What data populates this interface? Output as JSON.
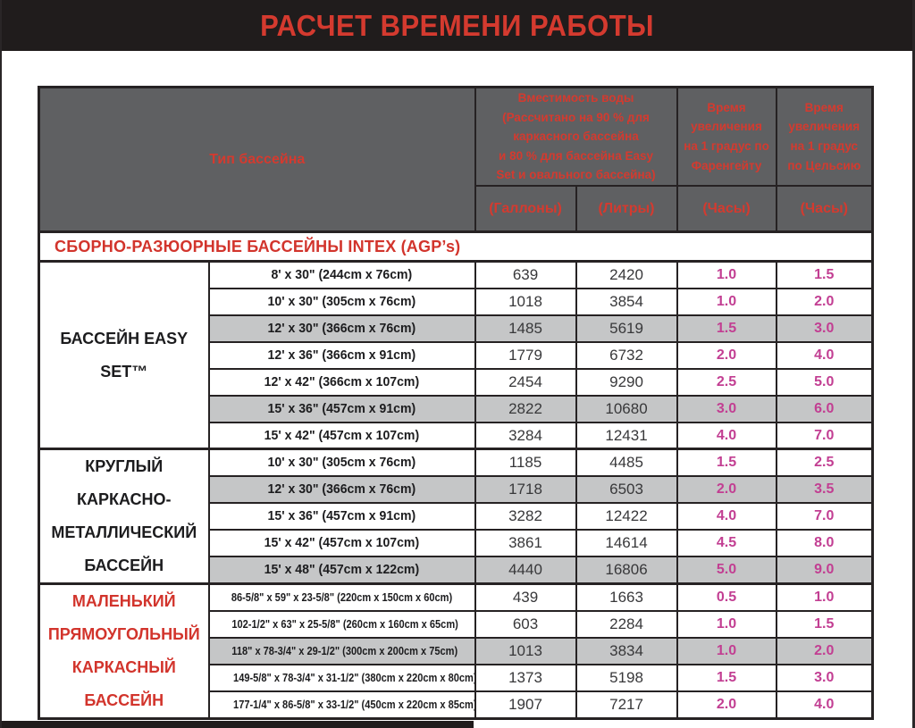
{
  "page": {
    "title": "РАСЧЕТ ВРЕМЕНИ РАБОТЫ"
  },
  "colors": {
    "accent_red": "#d43a2f",
    "hours_magenta": "#c23e92",
    "header_gray": "#5f6062",
    "row_shade": "#c5c6c7",
    "bar_black": "#201c1c"
  },
  "table": {
    "header": {
      "type_label": "Тип бассейна",
      "capacity_label": "Вместимость воды\n(Рассчитано на 90 % для\nкаркасного бассейна\nи 80 % для бассейна Easy\nSet и овального бассейна)",
      "fahrenheit_label": "Время\nувеличения\nна 1 градус по\nФаренгейту",
      "celsius_label": "Время\nувеличения\nна 1 градус\nпо Цельсию",
      "gallons_label": "(Галлоны)",
      "liters_label": "(Литры)",
      "hours_label_f": "(Часы)",
      "hours_label_c": "(Часы)"
    },
    "section_header": "СБОРНО-РАЗЮОРНЫЕ БАССЕЙНЫ INTEX (AGP’s)",
    "groups": [
      {
        "name": "БАССЕЙН EASY SET™",
        "red": false,
        "condensed": false,
        "rows": [
          {
            "size": "8' x 30\" (244cm x 76cm)",
            "gallons": "639",
            "liters": "2420",
            "hours_f": "1.0",
            "hours_c": "1.5",
            "shaded": false
          },
          {
            "size": "10' x 30\" (305cm x 76cm)",
            "gallons": "1018",
            "liters": "3854",
            "hours_f": "1.0",
            "hours_c": "2.0",
            "shaded": false
          },
          {
            "size": "12' x 30\" (366cm x 76cm)",
            "gallons": "1485",
            "liters": "5619",
            "hours_f": "1.5",
            "hours_c": "3.0",
            "shaded": true
          },
          {
            "size": "12' x 36\" (366cm x 91cm)",
            "gallons": "1779",
            "liters": "6732",
            "hours_f": "2.0",
            "hours_c": "4.0",
            "shaded": false
          },
          {
            "size": "12' x 42\" (366cm x 107cm)",
            "gallons": "2454",
            "liters": "9290",
            "hours_f": "2.5",
            "hours_c": "5.0",
            "shaded": false
          },
          {
            "size": "15' x 36\" (457cm x 91cm)",
            "gallons": "2822",
            "liters": "10680",
            "hours_f": "3.0",
            "hours_c": "6.0",
            "shaded": true
          },
          {
            "size": "15' x 42\" (457cm x 107cm)",
            "gallons": "3284",
            "liters": "12431",
            "hours_f": "4.0",
            "hours_c": "7.0",
            "shaded": false
          }
        ]
      },
      {
        "name": "КРУГЛЫЙ КАРКАСНО-МЕТАЛЛИЧЕСКИЙ БАССЕЙН",
        "red": false,
        "condensed": false,
        "rows": [
          {
            "size": "10' x 30\" (305cm x 76cm)",
            "gallons": "1185",
            "liters": "4485",
            "hours_f": "1.5",
            "hours_c": "2.5",
            "shaded": false
          },
          {
            "size": "12' x 30\" (366cm x 76cm)",
            "gallons": "1718",
            "liters": "6503",
            "hours_f": "2.0",
            "hours_c": "3.5",
            "shaded": true
          },
          {
            "size": "15' x 36\" (457cm x 91cm)",
            "gallons": "3282",
            "liters": "12422",
            "hours_f": "4.0",
            "hours_c": "7.0",
            "shaded": false
          },
          {
            "size": "15' x 42\" (457cm x 107cm)",
            "gallons": "3861",
            "liters": "14614",
            "hours_f": "4.5",
            "hours_c": "8.0",
            "shaded": false
          },
          {
            "size": "15' x 48\" (457cm x 122cm)",
            "gallons": "4440",
            "liters": "16806",
            "hours_f": "5.0",
            "hours_c": "9.0",
            "shaded": true
          }
        ]
      },
      {
        "name": "МАЛЕНЬКИЙ ПРЯМОУГОЛЬНЫЙ КАРКАСНЫЙ БАССЕЙН",
        "red": true,
        "condensed": true,
        "rows": [
          {
            "size": "86-5/8\" x 59\" x 23-5/8\" (220cm x 150cm x 60cm)",
            "gallons": "439",
            "liters": "1663",
            "hours_f": "0.5",
            "hours_c": "1.0",
            "shaded": false
          },
          {
            "size": "102-1/2\" x 63\" x 25-5/8\" (260cm x 160cm x 65cm)",
            "gallons": "603",
            "liters": "2284",
            "hours_f": "1.0",
            "hours_c": "1.5",
            "shaded": false
          },
          {
            "size": "118\" x 78-3/4\" x 29-1/2\" (300cm x 200cm x 75cm)",
            "gallons": "1013",
            "liters": "3834",
            "hours_f": "1.0",
            "hours_c": "2.0",
            "shaded": true
          },
          {
            "size": "149-5/8\" x 78-3/4\" x 31-1/2\" (380cm x 220cm x 80cm)",
            "gallons": "1373",
            "liters": "5198",
            "hours_f": "1.5",
            "hours_c": "3.0",
            "shaded": false
          },
          {
            "size": "177-1/4\" x 86-5/8\" x 33-1/2\" (450cm x 220cm x 85cm)",
            "gallons": "1907",
            "liters": "7217",
            "hours_f": "2.0",
            "hours_c": "4.0",
            "shaded": false
          }
        ]
      }
    ]
  }
}
